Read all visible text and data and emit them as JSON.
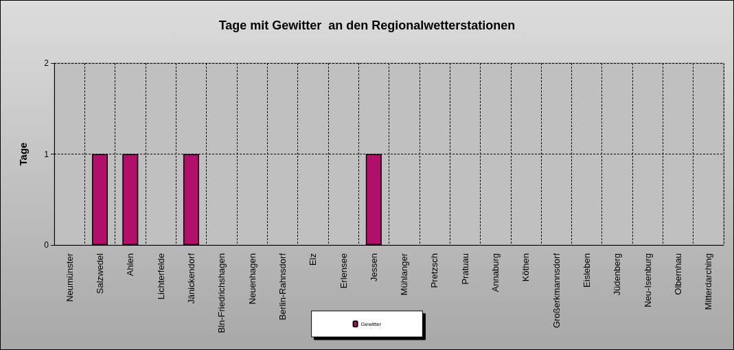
{
  "chart_data": {
    "type": "bar",
    "title": "Tage mit Gewitter  an den Regionalwetterstationen",
    "ylabel": "Tage",
    "categories": [
      "Neumünster",
      "Salzwedel",
      "Ahlen",
      "Lichterfelde",
      "Jänickendorf",
      "Bln-Friedrichshagen",
      "Neuenhagen",
      "Berlin-Rahnsdorf",
      "Elz",
      "Erlensee",
      "Jessen",
      "Mühlanger",
      "Pretzsch",
      "Pratuau",
      "Annaburg",
      "Köthen",
      "Großerkmannsdorf",
      "Eisleben",
      "Jüdenberg",
      "Neu-Isenburg",
      "Olbernhau",
      "Mitterdarching"
    ],
    "series": [
      {
        "name": "Gewitter",
        "color": "#b0106a",
        "values": [
          0,
          1,
          1,
          0,
          1,
          0,
          0,
          0,
          0,
          0,
          1,
          0,
          0,
          0,
          0,
          0,
          0,
          0,
          0,
          0,
          0,
          0
        ]
      }
    ],
    "ylim": [
      0,
      2
    ],
    "yticks": [
      0,
      1,
      2
    ],
    "grid": true,
    "legend": "bottom"
  }
}
